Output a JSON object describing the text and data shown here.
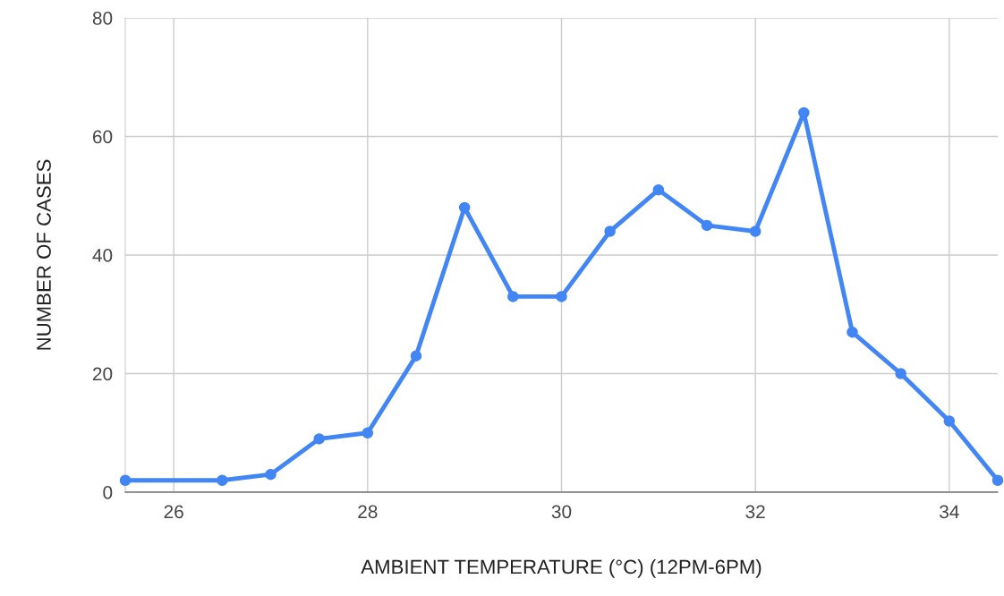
{
  "chart_data": {
    "type": "line",
    "xlabel": "AMBIENT TEMPERATURE (°C) (12PM-6PM)",
    "ylabel": "NUMBER OF CASES",
    "x": [
      25.5,
      26.5,
      27,
      27.5,
      28,
      28.5,
      29,
      29.5,
      30,
      30.5,
      31,
      31.5,
      32,
      32.5,
      33,
      33.5,
      34,
      34.5
    ],
    "series": [
      {
        "color": "#4285f4",
        "values": [
          2,
          2,
          3,
          9,
          10,
          23,
          48,
          33,
          33,
          44,
          51,
          45,
          44,
          64,
          27,
          20,
          12,
          2
        ]
      }
    ],
    "xlim": [
      25.5,
      34.5
    ],
    "xticks": [
      26,
      28,
      30,
      32,
      34
    ],
    "ylim": [
      0,
      80
    ],
    "yticks": [
      0,
      20,
      40,
      60,
      80
    ],
    "grid": true,
    "marker": "circle",
    "line_style": "solid",
    "legend": false
  }
}
